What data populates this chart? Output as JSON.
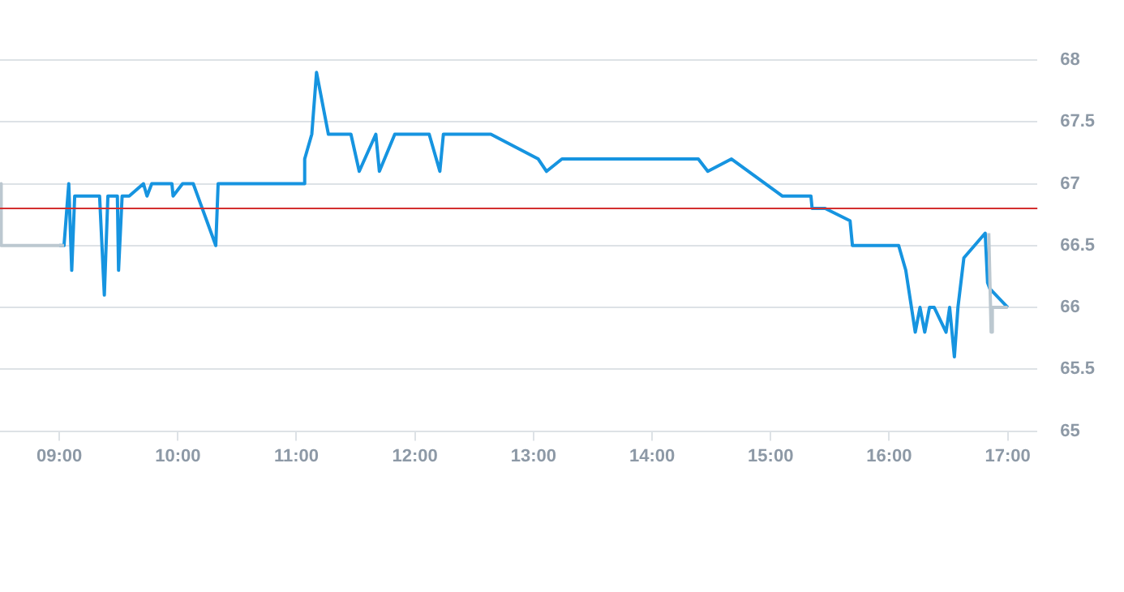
{
  "chart_data": {
    "type": "line",
    "xlim": [
      8.5,
      17.25
    ],
    "xticks": [
      {
        "value": 9,
        "label": "09:00"
      },
      {
        "value": 10,
        "label": "10:00"
      },
      {
        "value": 11,
        "label": "11:00"
      },
      {
        "value": 12,
        "label": "12:00"
      },
      {
        "value": 13,
        "label": "13:00"
      },
      {
        "value": 14,
        "label": "14:00"
      },
      {
        "value": 15,
        "label": "15:00"
      },
      {
        "value": 16,
        "label": "16:00"
      },
      {
        "value": 17,
        "label": "17:00"
      }
    ],
    "ylim": [
      65,
      68
    ],
    "yticks": [
      65,
      65.5,
      66,
      66.5,
      67,
      67.5,
      68
    ],
    "grid": "y",
    "legend": false,
    "marker": "none",
    "line_style": "solid",
    "ref_lines": [
      {
        "axis": "y",
        "value": 66.8,
        "color": "#d32f2f"
      }
    ],
    "series": [
      {
        "color": "#bcc8d0",
        "x": [
          8.5,
          8.51,
          9.0,
          9.04,
          null,
          16.84,
          16.86,
          16.87,
          17.0
        ],
        "values": [
          67.0,
          66.5,
          66.5,
          66.5,
          null,
          66.6,
          65.8,
          66.0,
          66.0
        ]
      },
      {
        "color": "#1694e0",
        "x": [
          9.0,
          9.04,
          9.08,
          9.105,
          9.13,
          9.34,
          9.38,
          9.41,
          9.49,
          9.5,
          9.53,
          9.59,
          9.71,
          9.74,
          9.78,
          9.95,
          9.96,
          10.04,
          10.13,
          10.32,
          10.34,
          11.06,
          11.07,
          11.13,
          11.17,
          11.27,
          11.46,
          11.53,
          11.67,
          11.7,
          11.83,
          12.12,
          12.21,
          12.24,
          12.64,
          13.04,
          13.11,
          13.24,
          14.39,
          14.47,
          14.67,
          15.1,
          15.34,
          15.35,
          15.46,
          15.67,
          15.69,
          16.08,
          16.14,
          16.22,
          16.26,
          16.3,
          16.34,
          16.38,
          16.48,
          16.51,
          16.55,
          16.58,
          16.63,
          16.81,
          16.83,
          16.85,
          17.0
        ],
        "values": [
          66.5,
          66.5,
          67.0,
          66.3,
          66.9,
          66.9,
          66.1,
          66.9,
          66.9,
          66.3,
          66.9,
          66.9,
          67.0,
          66.9,
          67.0,
          67.0,
          66.9,
          67.0,
          67.0,
          66.5,
          67.0,
          67.0,
          67.2,
          67.4,
          67.9,
          67.4,
          67.4,
          67.1,
          67.4,
          67.1,
          67.4,
          67.4,
          67.1,
          67.4,
          67.4,
          67.2,
          67.1,
          67.2,
          67.2,
          67.1,
          67.2,
          66.9,
          66.9,
          66.8,
          66.8,
          66.7,
          66.5,
          66.5,
          66.3,
          65.8,
          66.0,
          65.8,
          66.0,
          66.0,
          65.8,
          66.0,
          65.6,
          66.0,
          66.4,
          66.6,
          66.2,
          66.15,
          66.0
        ]
      }
    ]
  }
}
